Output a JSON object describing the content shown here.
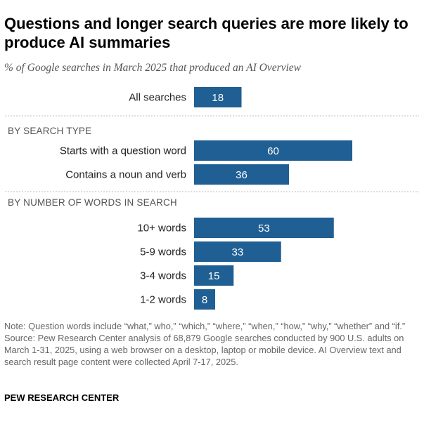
{
  "header": {
    "title": "Questions and longer search queries are more likely to produce AI summaries",
    "subtitle": "% of Google searches in March 2025 that produced an AI Overview"
  },
  "chart_data": {
    "type": "bar",
    "orientation": "horizontal",
    "bar_color": "#1f5f93",
    "divider_color": "#bdbdbd",
    "xlim": [
      0,
      100
    ],
    "groups": [
      {
        "label": "",
        "categories": [
          "All searches"
        ],
        "values": [
          18
        ]
      },
      {
        "label": "BY SEARCH TYPE",
        "categories": [
          "Starts with a question word",
          "Contains a noun and verb"
        ],
        "values": [
          60,
          36
        ]
      },
      {
        "label": "BY NUMBER OF WORDS IN SEARCH",
        "categories": [
          "10+ words",
          "5-9 words",
          "3-4 words",
          "1-2 words"
        ],
        "values": [
          53,
          33,
          15,
          8
        ]
      }
    ]
  },
  "notes": {
    "note": "Note: Question words include “what,” who,” “which,” “where,” “when,” “how,” “why,” “whether” and “if.”",
    "source": "Source: Pew Research Center analysis of 68,879 Google searches conducted by 900 U.S. adults on March 1-31, 2025, using a web browser on a desktop, laptop or mobile device. AI Overview text and search result page content were collected April 7-17, 2025."
  },
  "footer": {
    "org": "PEW RESEARCH CENTER"
  }
}
